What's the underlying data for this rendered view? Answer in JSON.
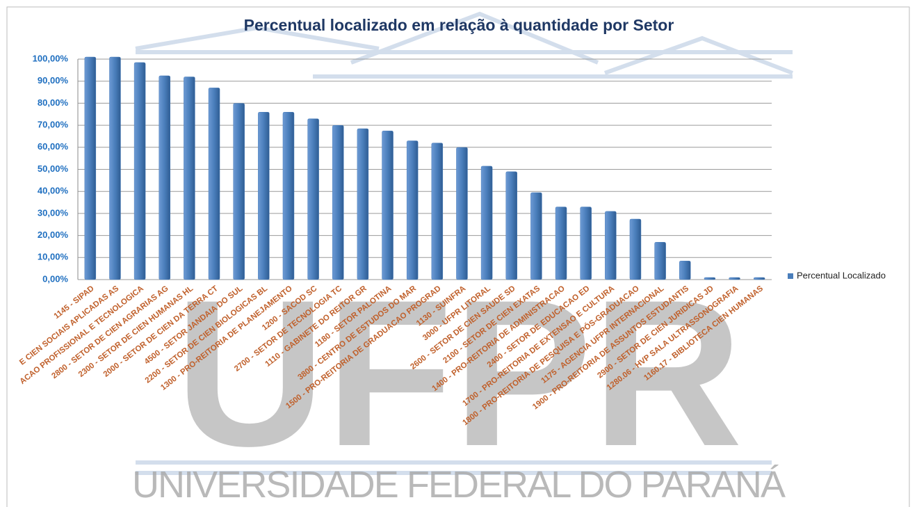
{
  "chart_data": {
    "type": "bar",
    "title": "Percentual localizado em relação à quantidade por Setor",
    "categories": [
      "1145 - SIPAD",
      "E CIEN SOCIAIS APLICADAS AS",
      "ACAO PROFISSIONAL E TECNOLOGICA",
      "2800 - SETOR DE CIEN  AGRARIAS AG",
      "2300 - SETOR DE CIEN HUMANAS HL",
      "2000 - SETOR DE CIEN DA TERRA CT",
      "4500 - SETOR JANDAIA DO SUL",
      "2200 - SETOR DE CIEN BIOLOGICAS BL",
      "1300 - PRO-REITORIA DE PLANEJAMENTO",
      "1200 - SACOD SC",
      "2700 - SETOR DE TECNOLOGIA TC",
      "1110 - GABINETE DO REITOR GR",
      "1180 - SETOR PALOTINA",
      "3800 - CENTRO DE ESTUDOS DO MAR",
      "1500 - PRO-REITORIA DE GRADUACAO PROGRAD",
      "1130 - SUINFRA",
      "3000 - UFPR LITORAL",
      "2600 - SETOR DE CIEN  SAUDE SD",
      "2100 - SETOR DE CIEN EXATAS",
      "1400 - PRO-REITORIA DE ADMINISTRACAO",
      "2400 - SETOR DE EDUCACAO  ED",
      "1700 - PRO-REITORIA DE EXTENSAO  E CULTURA",
      "1800 - PRO-REITORIA DE PESQUISA E PÓS-GRADUACAO",
      "1175 - AGENCIA UFPR INTERNACIONAL",
      "1900 - PRO-REITORIA DE ASSUNTOS ESTUDANTIS",
      "2900 - SETOR DE CIEN JURIDICAS JD",
      "1280.06 - HVP SALA ULTRASSONOGRAFIA",
      "1160.17 - BIBLIOTECA CIEN HUMANAS"
    ],
    "series": [
      {
        "name": "Percentual Localizado",
        "color": "#4a7ebb",
        "values": [
          100,
          100,
          97.5,
          91.5,
          91,
          86,
          79,
          75,
          75,
          72,
          69,
          67.5,
          66.5,
          62,
          61,
          59,
          50.5,
          48,
          38.5,
          32,
          32,
          30,
          26.5,
          16,
          7.5,
          0,
          0,
          0
        ]
      }
    ],
    "ylim": [
      0,
      100
    ],
    "yticks": [
      {
        "value": 0,
        "label": "0,00%"
      },
      {
        "value": 10,
        "label": "10,00%"
      },
      {
        "value": 20,
        "label": "20,00%"
      },
      {
        "value": 30,
        "label": "30,00%"
      },
      {
        "value": 40,
        "label": "40,00%"
      },
      {
        "value": 50,
        "label": "50,00%"
      },
      {
        "value": 60,
        "label": "60,00%"
      },
      {
        "value": 70,
        "label": "70,00%"
      },
      {
        "value": 80,
        "label": "80,00%"
      },
      {
        "value": 90,
        "label": "90,00%"
      },
      {
        "value": 100,
        "label": "100,00%"
      }
    ],
    "grid": true,
    "legend": "right"
  },
  "watermark": {
    "logo": "UFPR",
    "name": "UNIVERSIDADE FEDERAL DO PARANÁ"
  }
}
